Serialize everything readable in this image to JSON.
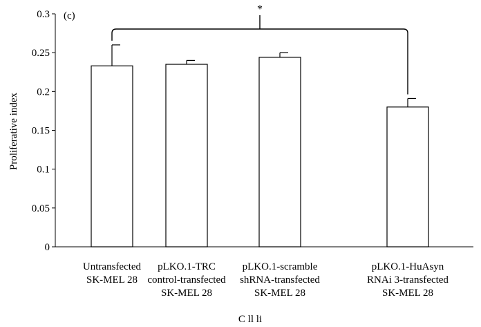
{
  "chart_data": {
    "type": "bar",
    "panel_label": "(c)",
    "ylabel": "Proliferative index",
    "xlabel": "C ll li",
    "ylim": [
      0,
      0.3
    ],
    "yticks": [
      "0",
      "0.05",
      "0.1",
      "0.15",
      "0.2",
      "0.25",
      "0.3"
    ],
    "categories": [
      [
        "Untransfected",
        "SK-MEL 28"
      ],
      [
        "pLKO.1-TRC",
        "control-transfected",
        "SK-MEL 28"
      ],
      [
        "pLKO.1-scramble",
        "shRNA-transfected",
        "SK-MEL 28"
      ],
      [
        "pLKO.1-HuAsyn",
        "RNAi 3-transfected",
        "SK-MEL 28"
      ]
    ],
    "values": [
      0.233,
      0.235,
      0.244,
      0.18
    ],
    "errors": [
      0.027,
      0.005,
      0.006,
      0.011
    ],
    "significance": {
      "from": 0,
      "to": 3,
      "label": "*"
    },
    "bar_color": "#ffffff",
    "edge_color": "#000000"
  }
}
